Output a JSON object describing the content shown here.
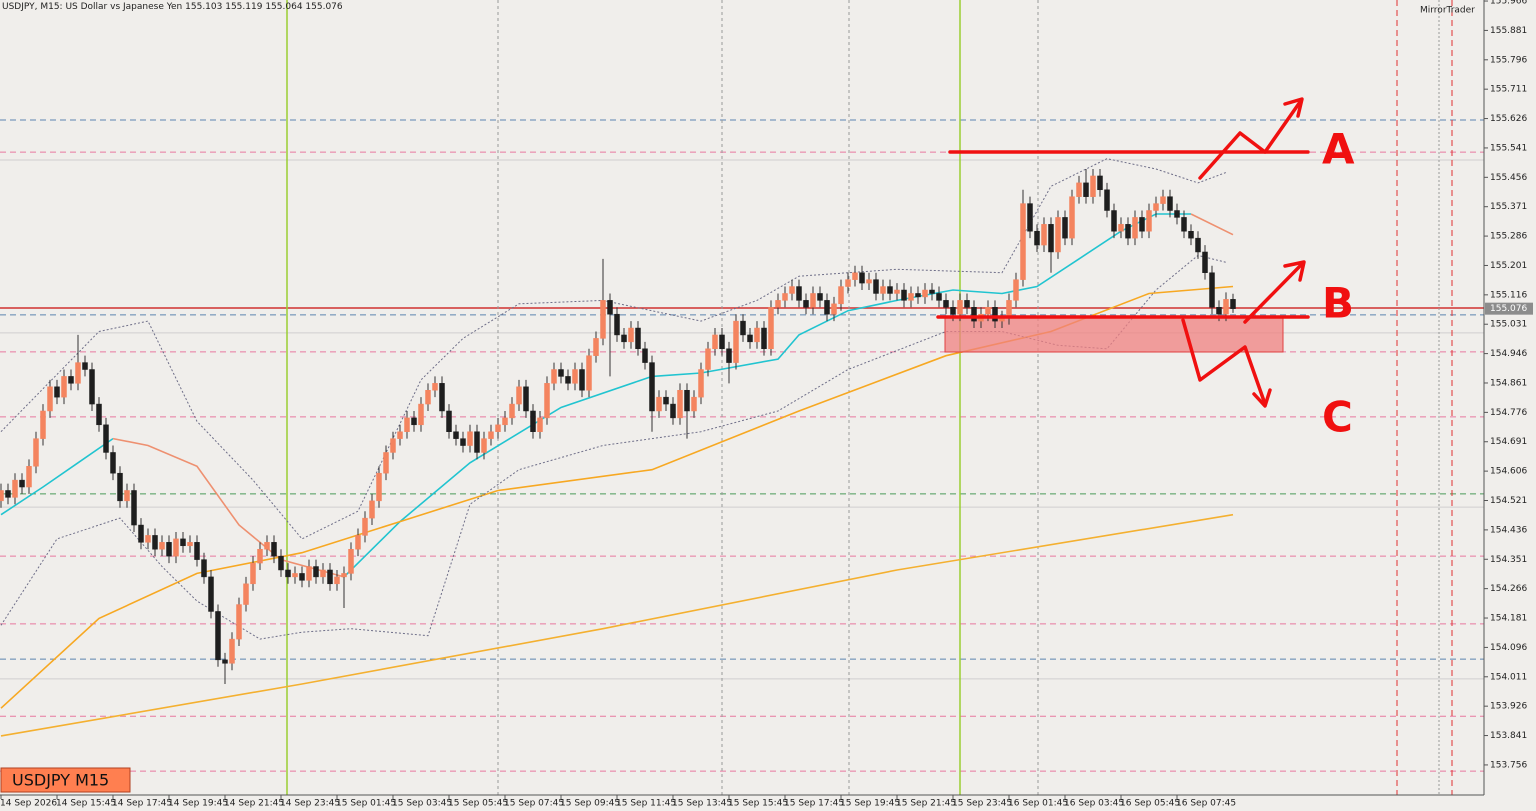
{
  "chart_data": {
    "type": "candlestick",
    "title": "USDJPY, M15:  US Dollar vs Japanese Yen",
    "badge": "USDJPY M15",
    "watermark": "MirrorTrader",
    "annotations": [
      "A",
      "B",
      "C"
    ],
    "categories": [
      "14 Sep 2026",
      null,
      null,
      null,
      null,
      null,
      null,
      null,
      "14 Sep 15:45",
      null,
      null,
      null,
      null,
      null,
      null,
      null,
      "14 Sep 17:45",
      null,
      null,
      null,
      null,
      null,
      null,
      null,
      "14 Sep 19:45",
      null,
      null,
      null,
      null,
      null,
      null,
      null,
      "14 Sep 21:45",
      null,
      null,
      null,
      null,
      null,
      null,
      null,
      "14 Sep 23:45",
      null,
      null,
      null,
      null,
      null,
      null,
      null,
      "15 Sep 01:45",
      null,
      null,
      null,
      null,
      null,
      null,
      null,
      "15 Sep 03:45",
      null,
      null,
      null,
      null,
      null,
      null,
      null,
      "15 Sep 05:45",
      null,
      null,
      null,
      null,
      null,
      null,
      null,
      "15 Sep 07:45",
      null,
      null,
      null,
      null,
      null,
      null,
      null,
      "15 Sep 09:45",
      null,
      null,
      null,
      null,
      null,
      null,
      null,
      "15 Sep 11:45",
      null,
      null,
      null,
      null,
      null,
      null,
      null,
      "15 Sep 13:45",
      null,
      null,
      null,
      null,
      null,
      null,
      null,
      "15 Sep 15:45",
      null,
      null,
      null,
      null,
      null,
      null,
      null,
      "15 Sep 17:45",
      null,
      null,
      null,
      null,
      null,
      null,
      null,
      "15 Sep 19:45",
      null,
      null,
      null,
      null,
      null,
      null,
      null,
      "15 Sep 21:45",
      null,
      null,
      null,
      null,
      null,
      null,
      null,
      "15 Sep 23:45",
      null,
      null,
      null,
      null,
      null,
      null,
      null,
      "16 Sep 01:45",
      null,
      null,
      null,
      null,
      null,
      null,
      null,
      "16 Sep 03:45",
      null,
      null,
      null,
      null,
      null,
      null,
      null,
      "16 Sep 05:45",
      null,
      null,
      null,
      null,
      null,
      null,
      null,
      "16 Sep 07:45",
      null,
      null,
      null,
      null,
      null,
      null,
      null,
      null
    ],
    "open": [
      154.52,
      154.55,
      154.53,
      154.58,
      154.56,
      154.62,
      154.7,
      154.78,
      154.85,
      154.82,
      154.88,
      154.86,
      154.92,
      154.9,
      154.8,
      154.74,
      154.66,
      154.6,
      154.52,
      154.55,
      154.45,
      154.4,
      154.42,
      154.38,
      154.4,
      154.36,
      154.41,
      154.39,
      154.4,
      154.35,
      154.3,
      154.2,
      154.06,
      154.05,
      154.12,
      154.22,
      154.28,
      154.34,
      154.38,
      154.4,
      154.36,
      154.32,
      154.3,
      154.31,
      154.29,
      154.33,
      154.3,
      154.32,
      154.28,
      154.3,
      154.31,
      154.38,
      154.42,
      154.47,
      154.52,
      154.6,
      154.66,
      154.7,
      154.72,
      154.76,
      154.74,
      154.8,
      154.84,
      154.86,
      154.78,
      154.72,
      154.7,
      154.68,
      154.72,
      154.66,
      154.7,
      154.72,
      154.74,
      154.76,
      154.8,
      154.85,
      154.78,
      154.72,
      154.76,
      154.86,
      154.9,
      154.88,
      154.86,
      154.9,
      154.84,
      154.94,
      154.99,
      155.1,
      155.06,
      155.0,
      154.98,
      155.02,
      154.96,
      154.92,
      154.78,
      154.82,
      154.8,
      154.76,
      154.84,
      154.78,
      154.82,
      154.9,
      154.96,
      155.0,
      154.96,
      154.92,
      155.04,
      155.0,
      154.98,
      155.02,
      154.96,
      155.08,
      155.1,
      155.12,
      155.14,
      155.1,
      155.08,
      155.12,
      155.1,
      155.06,
      155.09,
      155.14,
      155.16,
      155.18,
      155.15,
      155.16,
      155.12,
      155.14,
      155.12,
      155.13,
      155.1,
      155.12,
      155.11,
      155.13,
      155.12,
      155.1,
      155.08,
      155.06,
      155.1,
      155.08,
      155.04,
      155.06,
      155.08,
      155.04,
      155.05,
      155.1,
      155.16,
      155.38,
      155.3,
      155.26,
      155.32,
      155.24,
      155.34,
      155.28,
      155.4,
      155.44,
      155.4,
      155.46,
      155.42,
      155.36,
      155.3,
      155.32,
      155.28,
      155.34,
      155.3,
      155.36,
      155.38,
      155.4,
      155.36,
      155.34,
      155.3,
      155.28,
      155.24,
      155.18,
      155.08,
      155.06,
      155.103
    ],
    "high": [
      154.57,
      154.57,
      154.6,
      154.6,
      154.64,
      154.72,
      154.8,
      154.87,
      154.87,
      154.9,
      154.9,
      155.0,
      154.94,
      154.92,
      154.82,
      154.76,
      154.68,
      154.62,
      154.57,
      154.57,
      154.47,
      154.44,
      154.44,
      154.42,
      154.42,
      154.43,
      154.43,
      154.42,
      154.42,
      154.37,
      154.32,
      154.22,
      154.08,
      154.14,
      154.24,
      154.3,
      154.36,
      154.4,
      154.42,
      154.42,
      154.38,
      154.34,
      154.33,
      154.33,
      154.35,
      154.35,
      154.34,
      154.34,
      154.32,
      154.33,
      154.4,
      154.44,
      154.49,
      154.54,
      154.62,
      154.68,
      154.72,
      154.74,
      154.78,
      154.78,
      154.82,
      154.86,
      154.88,
      154.88,
      154.8,
      154.74,
      154.72,
      154.74,
      154.74,
      154.72,
      154.74,
      154.76,
      154.78,
      154.82,
      154.87,
      154.87,
      154.8,
      154.78,
      154.88,
      154.92,
      154.92,
      154.9,
      154.92,
      154.92,
      154.96,
      155.01,
      155.22,
      155.12,
      155.08,
      155.02,
      155.04,
      155.04,
      154.98,
      154.94,
      154.84,
      154.84,
      154.82,
      154.86,
      154.86,
      154.84,
      154.92,
      154.98,
      155.02,
      155.02,
      154.98,
      155.06,
      155.06,
      155.02,
      155.04,
      155.04,
      155.1,
      155.12,
      155.14,
      155.16,
      155.16,
      155.12,
      155.14,
      155.14,
      155.12,
      155.11,
      155.16,
      155.18,
      155.2,
      155.2,
      155.18,
      155.18,
      155.16,
      155.16,
      155.15,
      155.15,
      155.14,
      155.14,
      155.15,
      155.15,
      155.14,
      155.12,
      155.1,
      155.12,
      155.12,
      155.1,
      155.08,
      155.1,
      155.1,
      155.07,
      155.12,
      155.18,
      155.42,
      155.4,
      155.32,
      155.34,
      155.34,
      155.36,
      155.36,
      155.42,
      155.46,
      155.48,
      155.48,
      155.48,
      155.44,
      155.38,
      155.34,
      155.34,
      155.36,
      155.36,
      155.38,
      155.4,
      155.42,
      155.42,
      155.38,
      155.36,
      155.32,
      155.3,
      155.26,
      155.2,
      155.1,
      155.123,
      155.119
    ],
    "low": [
      154.5,
      154.51,
      154.51,
      154.54,
      154.54,
      154.6,
      154.68,
      154.76,
      154.8,
      154.8,
      154.84,
      154.84,
      154.88,
      154.78,
      154.72,
      154.64,
      154.58,
      154.5,
      154.5,
      154.43,
      154.38,
      154.38,
      154.36,
      154.36,
      154.34,
      154.34,
      154.37,
      154.37,
      154.33,
      154.28,
      154.18,
      154.04,
      153.99,
      154.03,
      154.1,
      154.2,
      154.26,
      154.32,
      154.36,
      154.34,
      154.3,
      154.28,
      154.28,
      154.27,
      154.27,
      154.28,
      154.28,
      154.26,
      154.26,
      154.21,
      154.29,
      154.36,
      154.4,
      154.45,
      154.5,
      154.58,
      154.64,
      154.68,
      154.7,
      154.72,
      154.72,
      154.78,
      154.82,
      154.76,
      154.7,
      154.68,
      154.66,
      154.66,
      154.64,
      154.64,
      154.68,
      154.7,
      154.72,
      154.74,
      154.78,
      154.76,
      154.7,
      154.7,
      154.74,
      154.84,
      154.86,
      154.84,
      154.84,
      154.82,
      154.82,
      154.92,
      154.97,
      154.88,
      154.98,
      154.96,
      154.96,
      154.94,
      154.9,
      154.72,
      154.76,
      154.78,
      154.74,
      154.74,
      154.7,
      154.76,
      154.8,
      154.88,
      154.94,
      154.94,
      154.86,
      154.9,
      154.98,
      154.96,
      154.96,
      154.94,
      154.94,
      155.06,
      155.08,
      155.1,
      155.08,
      155.06,
      155.06,
      155.08,
      155.04,
      155.04,
      155.07,
      155.12,
      155.14,
      155.13,
      155.13,
      155.1,
      155.1,
      155.1,
      155.1,
      155.08,
      155.08,
      155.09,
      155.09,
      155.1,
      155.08,
      155.06,
      155.04,
      155.04,
      155.06,
      155.02,
      155.02,
      155.04,
      155.02,
      155.02,
      155.03,
      155.08,
      155.14,
      155.28,
      155.24,
      155.24,
      155.18,
      155.22,
      155.26,
      155.26,
      155.38,
      155.38,
      155.38,
      155.4,
      155.34,
      155.28,
      155.28,
      155.26,
      155.26,
      155.28,
      155.28,
      155.34,
      155.36,
      155.34,
      155.32,
      155.28,
      155.26,
      155.22,
      155.16,
      155.06,
      155.04,
      155.04,
      155.064
    ],
    "close": [
      154.55,
      154.53,
      154.58,
      154.56,
      154.62,
      154.7,
      154.78,
      154.85,
      154.82,
      154.88,
      154.86,
      154.92,
      154.9,
      154.8,
      154.74,
      154.66,
      154.6,
      154.52,
      154.55,
      154.45,
      154.4,
      154.42,
      154.38,
      154.4,
      154.36,
      154.41,
      154.39,
      154.4,
      154.35,
      154.3,
      154.2,
      154.06,
      154.05,
      154.12,
      154.22,
      154.28,
      154.34,
      154.38,
      154.4,
      154.36,
      154.32,
      154.3,
      154.31,
      154.29,
      154.33,
      154.3,
      154.32,
      154.28,
      154.3,
      154.31,
      154.38,
      154.42,
      154.47,
      154.52,
      154.6,
      154.66,
      154.7,
      154.72,
      154.76,
      154.74,
      154.8,
      154.84,
      154.86,
      154.78,
      154.72,
      154.7,
      154.68,
      154.72,
      154.66,
      154.7,
      154.72,
      154.74,
      154.76,
      154.8,
      154.85,
      154.78,
      154.72,
      154.76,
      154.86,
      154.9,
      154.88,
      154.86,
      154.9,
      154.84,
      154.94,
      154.99,
      155.1,
      155.06,
      155.0,
      154.98,
      155.02,
      154.96,
      154.92,
      154.78,
      154.82,
      154.8,
      154.76,
      154.84,
      154.78,
      154.82,
      154.9,
      154.96,
      155.0,
      154.96,
      154.92,
      155.04,
      155.0,
      154.98,
      155.02,
      154.96,
      155.08,
      155.1,
      155.12,
      155.14,
      155.1,
      155.08,
      155.12,
      155.1,
      155.06,
      155.09,
      155.14,
      155.16,
      155.18,
      155.15,
      155.16,
      155.12,
      155.14,
      155.12,
      155.13,
      155.1,
      155.12,
      155.11,
      155.13,
      155.12,
      155.1,
      155.08,
      155.06,
      155.1,
      155.08,
      155.04,
      155.06,
      155.08,
      155.04,
      155.05,
      155.1,
      155.16,
      155.38,
      155.3,
      155.26,
      155.32,
      155.24,
      155.34,
      155.28,
      155.4,
      155.44,
      155.4,
      155.46,
      155.42,
      155.36,
      155.3,
      155.32,
      155.28,
      155.34,
      155.3,
      155.36,
      155.38,
      155.4,
      155.36,
      155.34,
      155.3,
      155.28,
      155.24,
      155.18,
      155.08,
      155.06,
      155.103,
      155.076
    ],
    "up_color": "#f4845f",
    "down_color": "#1e1e1e",
    "wick_color": "#333333",
    "ylim": [
      153.669,
      155.969
    ],
    "yticks": [
      155.966,
      155.881,
      155.796,
      155.711,
      155.626,
      155.541,
      155.456,
      155.371,
      155.286,
      155.201,
      155.116,
      155.031,
      154.946,
      154.861,
      154.776,
      154.691,
      154.606,
      154.521,
      154.436,
      154.351,
      154.266,
      154.181,
      154.096,
      154.011,
      153.926,
      153.841,
      153.756
    ],
    "indicators": [
      {
        "color": "#21c4d0",
        "style": "solid",
        "x": [
          0,
          6,
          11,
          16
        ],
        "values": [
          154.48,
          154.56,
          154.63,
          154.7
        ]
      },
      {
        "color": "#21c4d0",
        "style": "solid",
        "x": [
          49,
          57,
          67,
          80,
          93,
          100,
          111,
          114,
          121,
          128,
          136,
          143,
          148,
          154,
          160,
          165,
          170
        ],
        "values": [
          154.3,
          154.46,
          154.63,
          154.79,
          154.88,
          154.89,
          154.93,
          155.0,
          155.07,
          155.1,
          155.13,
          155.12,
          155.14,
          155.22,
          155.3,
          155.35,
          155.35
        ]
      },
      {
        "color": "#ee9070",
        "style": "solid",
        "x": [
          16,
          21,
          28,
          34,
          40,
          49
        ],
        "values": [
          154.7,
          154.68,
          154.62,
          154.45,
          154.35,
          154.3
        ]
      },
      {
        "color": "#ee9070",
        "style": "solid",
        "x": [
          170,
          176
        ],
        "values": [
          155.35,
          155.29
        ]
      },
      {
        "color": "#f7a822",
        "style": "solid",
        "x": [
          0,
          14,
          28,
          43,
          57,
          71,
          93,
          114,
          135,
          150,
          164,
          176
        ],
        "values": [
          153.92,
          154.18,
          154.31,
          154.37,
          154.46,
          154.55,
          154.61,
          154.78,
          154.94,
          155.01,
          155.12,
          155.14
        ]
      },
      {
        "color": "#f4b030",
        "style": "solid",
        "x": [
          0,
          43,
          86,
          128,
          176
        ],
        "values": [
          153.84,
          153.99,
          154.15,
          154.32,
          154.48
        ]
      },
      {
        "color": "#6e6e88",
        "style": "dotted",
        "x": [
          0,
          14,
          21,
          28,
          36,
          43,
          51,
          60,
          66,
          74,
          86,
          100,
          108,
          114,
          128,
          143,
          150,
          158,
          165,
          171,
          175
        ],
        "values": [
          154.72,
          155.01,
          155.04,
          154.75,
          154.58,
          154.41,
          154.49,
          154.87,
          154.99,
          155.09,
          155.1,
          155.04,
          155.1,
          155.17,
          155.19,
          155.18,
          155.43,
          155.51,
          155.48,
          155.44,
          155.47
        ]
      },
      {
        "color": "#6e6e88",
        "style": "dotted",
        "x": [
          0,
          8,
          17,
          23,
          28,
          37,
          43,
          50,
          61,
          67,
          74,
          86,
          100,
          111,
          121,
          135,
          143,
          151,
          158,
          165,
          171,
          175
        ],
        "values": [
          154.16,
          154.41,
          154.47,
          154.33,
          154.23,
          154.12,
          154.14,
          154.15,
          154.13,
          154.51,
          154.61,
          154.68,
          154.72,
          154.78,
          154.9,
          155.01,
          155.01,
          154.97,
          154.96,
          155.13,
          155.23,
          155.21
        ]
      }
    ],
    "levels": [
      {
        "value": 155.622,
        "color": "#5b84b0",
        "style": "dash"
      },
      {
        "value": 155.529,
        "color": "#e878a0",
        "style": "dash"
      },
      {
        "value": 155.506,
        "color": "#cfcfcf",
        "style": "solid"
      },
      {
        "value": 155.078,
        "color": "#d03030",
        "style": "solid"
      },
      {
        "value": 155.058,
        "color": "#5b84b0",
        "style": "dash"
      },
      {
        "value": 155.006,
        "color": "#cfcfcf",
        "style": "solid"
      },
      {
        "value": 154.951,
        "color": "#e878a0",
        "style": "dash"
      },
      {
        "value": 154.763,
        "color": "#e878a0",
        "style": "dash"
      },
      {
        "value": 154.54,
        "color": "#4a9a5a",
        "style": "dash"
      },
      {
        "value": 154.502,
        "color": "#cfcfcf",
        "style": "solid"
      },
      {
        "value": 154.36,
        "color": "#e878a0",
        "style": "dash"
      },
      {
        "value": 154.164,
        "color": "#e878a0",
        "style": "dash"
      },
      {
        "value": 154.062,
        "color": "#5b84b0",
        "style": "dash"
      },
      {
        "value": 154.005,
        "color": "#cfcfcf",
        "style": "solid"
      },
      {
        "value": 153.897,
        "color": "#e878a0",
        "style": "dash"
      },
      {
        "value": 153.738,
        "color": "#e878a0",
        "style": "dash"
      }
    ]
  }
}
